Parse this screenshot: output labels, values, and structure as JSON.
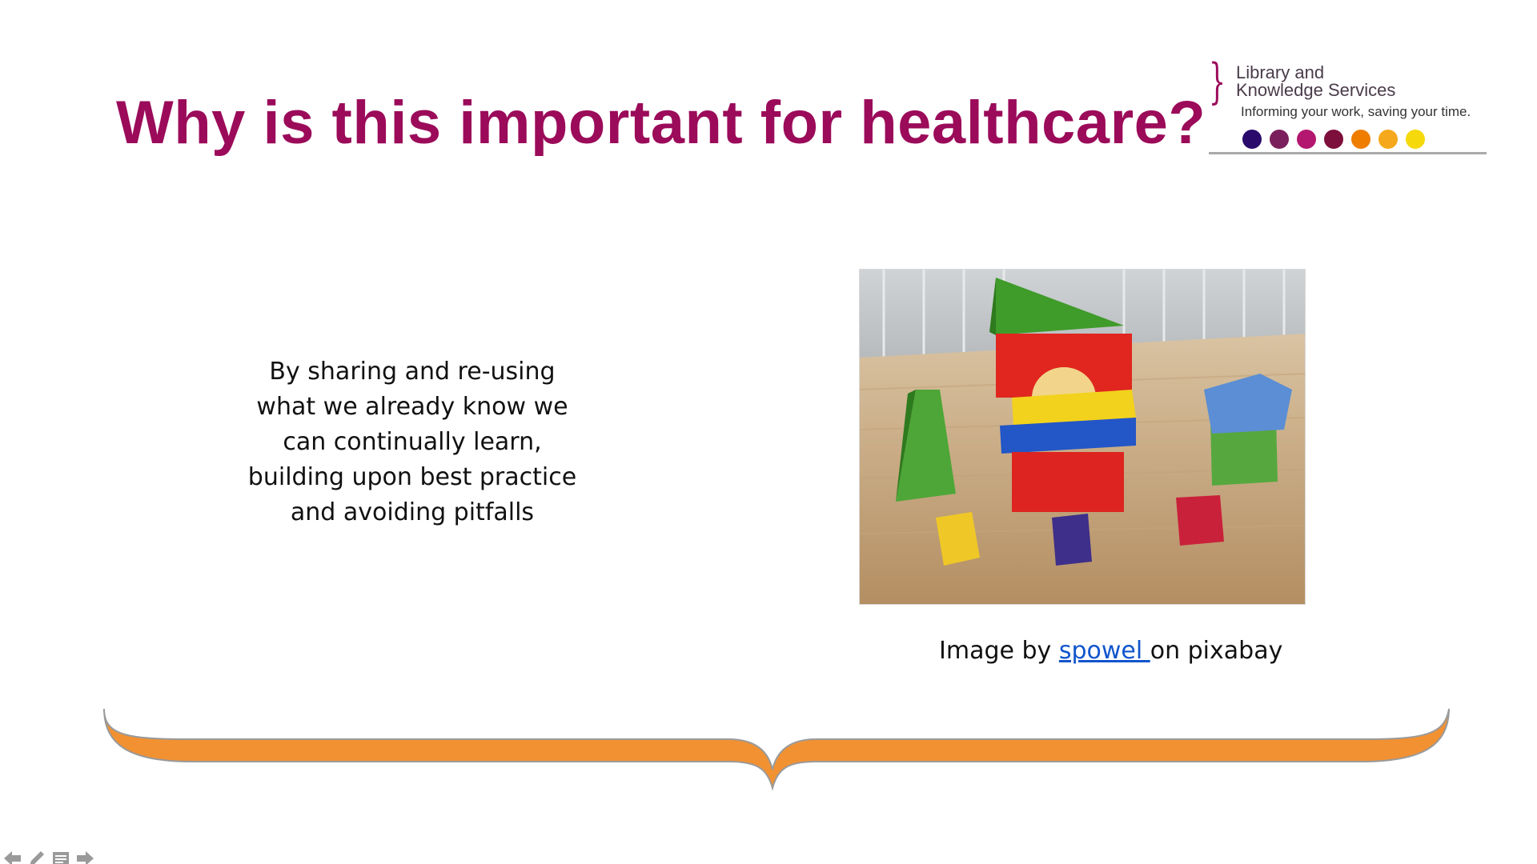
{
  "slide": {
    "title": "Why is this important for healthcare?",
    "body": "By sharing and re-using what we already know we can continually learn, building upon best practice and avoiding pitfalls",
    "caption": {
      "prefix": "Image by ",
      "link_text": "spowel ",
      "suffix": "on pixabay"
    }
  },
  "logo": {
    "line1": "Library and",
    "line2": "Knowledge Services",
    "tagline": "Informing your work, saving your time.",
    "dot_colors": [
      "#2a0a6b",
      "#7a1f5c",
      "#b3176f",
      "#7d0f3c",
      "#ee7d00",
      "#f5a81c",
      "#f5d90a"
    ]
  },
  "colors": {
    "title": "#9b0b5a",
    "brace": "#f29132",
    "link": "#1155cc"
  },
  "nav": {
    "icons": [
      "arrow-left-icon",
      "pen-icon",
      "menu-icon",
      "arrow-right-icon"
    ]
  }
}
